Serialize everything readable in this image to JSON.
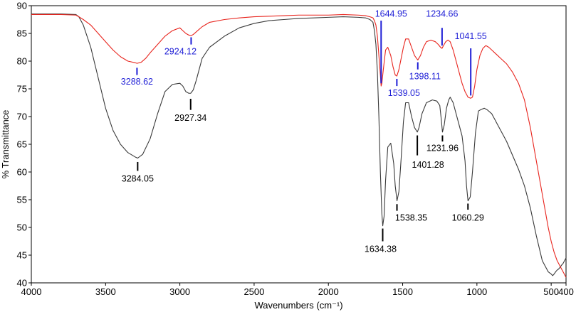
{
  "chart_data": {
    "type": "line",
    "xlabel": "Wavenumbers (cm⁻¹)",
    "ylabel": "% Transmittance",
    "xlim": [
      4000,
      400
    ],
    "ylim": [
      40,
      90
    ],
    "x_ticks": [
      "4000",
      "3500",
      "3000",
      "2500",
      "2000",
      "1500",
      "1000",
      "500",
      "400"
    ],
    "x_tick_values": [
      4000,
      3500,
      3000,
      2500,
      2000,
      1500,
      1000,
      500,
      400
    ],
    "y_ticks": [
      "40",
      "45",
      "50",
      "55",
      "60",
      "65",
      "70",
      "75",
      "80",
      "85",
      "90"
    ],
    "y_tick_values": [
      40,
      45,
      50,
      55,
      60,
      65,
      70,
      75,
      80,
      85,
      90
    ],
    "grid": false,
    "colors": {
      "black_series": "#3a3a3a",
      "red_series": "#e8251e",
      "blue_labels": "#1f1fd6"
    },
    "series": [
      {
        "color": "black",
        "x": [
          4000,
          3800,
          3700,
          3680,
          3650,
          3600,
          3550,
          3500,
          3450,
          3400,
          3350,
          3300,
          3284,
          3250,
          3200,
          3150,
          3100,
          3050,
          3000,
          2980,
          2960,
          2940,
          2927,
          2910,
          2890,
          2870,
          2850,
          2800,
          2700,
          2600,
          2500,
          2400,
          2300,
          2200,
          2100,
          2000,
          1900,
          1800,
          1750,
          1720,
          1700,
          1690,
          1680,
          1670,
          1660,
          1650,
          1640,
          1634,
          1625,
          1615,
          1600,
          1580,
          1560,
          1550,
          1538,
          1525,
          1510,
          1495,
          1480,
          1460,
          1440,
          1420,
          1401,
          1390,
          1370,
          1340,
          1300,
          1270,
          1250,
          1240,
          1232,
          1220,
          1205,
          1190,
          1180,
          1160,
          1140,
          1120,
          1100,
          1080,
          1070,
          1060,
          1045,
          1030,
          1010,
          990,
          970,
          950,
          930,
          900,
          880,
          860,
          840,
          820,
          800,
          760,
          720,
          680,
          640,
          600,
          560,
          520,
          500,
          490,
          480,
          470,
          460,
          450,
          440,
          430,
          420,
          410,
          400
        ],
        "y": [
          88.5,
          88.5,
          88.4,
          88.0,
          86.5,
          82.5,
          77.0,
          71.5,
          67.5,
          65.0,
          63.5,
          62.7,
          62.5,
          63.2,
          66.0,
          70.5,
          74.5,
          75.8,
          76.0,
          75.5,
          74.5,
          74.2,
          74.2,
          74.8,
          76.5,
          78.5,
          80.5,
          82.5,
          84.5,
          86.0,
          86.8,
          87.3,
          87.5,
          87.7,
          87.8,
          87.9,
          88.0,
          87.9,
          87.8,
          87.5,
          87.0,
          85.5,
          83.0,
          78.0,
          70.0,
          60.0,
          52.5,
          50.3,
          52.0,
          58.5,
          64.5,
          65.2,
          61.5,
          57.5,
          54.8,
          56.5,
          62.5,
          69.0,
          72.5,
          72.5,
          70.0,
          68.0,
          67.2,
          68.0,
          70.5,
          72.5,
          73.0,
          72.8,
          72.0,
          69.5,
          67.2,
          68.5,
          71.5,
          73.0,
          73.5,
          72.5,
          70.5,
          68.5,
          66.5,
          62.0,
          57.5,
          54.8,
          55.5,
          60.0,
          67.0,
          71.0,
          71.3,
          71.5,
          71.2,
          70.5,
          69.5,
          68.5,
          67.5,
          66.5,
          65.5,
          63.0,
          60.5,
          57.5,
          53.5,
          48.5,
          44.0,
          42.0,
          41.6,
          41.3,
          41.6,
          42.0,
          42.3,
          42.5,
          42.8,
          43.2,
          43.5,
          44.0,
          44.5
        ]
      },
      {
        "color": "red",
        "x": [
          4000,
          3800,
          3700,
          3680,
          3650,
          3600,
          3550,
          3500,
          3450,
          3400,
          3350,
          3300,
          3288,
          3260,
          3230,
          3200,
          3150,
          3100,
          3050,
          3000,
          2980,
          2960,
          2940,
          2924,
          2910,
          2880,
          2850,
          2800,
          2700,
          2600,
          2500,
          2400,
          2300,
          2200,
          2100,
          2000,
          1900,
          1800,
          1750,
          1720,
          1700,
          1690,
          1680,
          1670,
          1660,
          1650,
          1645,
          1640,
          1630,
          1615,
          1600,
          1580,
          1565,
          1550,
          1539,
          1525,
          1510,
          1495,
          1480,
          1460,
          1440,
          1420,
          1398,
          1380,
          1360,
          1340,
          1310,
          1280,
          1260,
          1245,
          1235,
          1225,
          1210,
          1195,
          1180,
          1160,
          1140,
          1120,
          1100,
          1080,
          1060,
          1042,
          1030,
          1015,
          1000,
          980,
          960,
          940,
          920,
          900,
          880,
          860,
          840,
          800,
          760,
          720,
          680,
          640,
          600,
          560,
          520,
          500,
          480,
          460,
          440,
          420,
          400
        ],
        "y": [
          88.4,
          88.4,
          88.3,
          88.0,
          87.5,
          86.5,
          85.0,
          83.5,
          82.0,
          80.8,
          80.0,
          79.7,
          79.6,
          79.8,
          80.5,
          81.5,
          83.0,
          84.5,
          85.5,
          86.0,
          85.5,
          85.0,
          84.7,
          84.6,
          84.8,
          85.5,
          86.2,
          87.0,
          87.5,
          87.8,
          88.0,
          88.1,
          88.2,
          88.3,
          88.3,
          88.3,
          88.4,
          88.3,
          88.2,
          88.0,
          87.8,
          87.3,
          86.5,
          84.5,
          81.0,
          77.5,
          75.5,
          76.0,
          78.5,
          82.0,
          82.5,
          81.0,
          79.0,
          77.5,
          77.3,
          78.5,
          80.5,
          82.5,
          84.0,
          84.0,
          82.5,
          81.0,
          80.2,
          81.0,
          82.5,
          83.5,
          83.8,
          83.5,
          83.0,
          82.5,
          82.3,
          82.8,
          83.5,
          83.8,
          83.5,
          82.0,
          80.0,
          78.0,
          76.0,
          74.5,
          73.5,
          73.3,
          73.5,
          75.5,
          78.5,
          81.0,
          82.3,
          82.8,
          82.5,
          82.0,
          81.5,
          81.0,
          80.5,
          79.5,
          78.0,
          76.0,
          73.0,
          68.0,
          62.0,
          56.0,
          50.0,
          47.5,
          45.5,
          44.0,
          43.0,
          42.0,
          41.0
        ]
      }
    ],
    "annotations": [
      {
        "text": "3288.62",
        "series": "red",
        "x": 3288.62,
        "y": 79.6,
        "tick_top": 78.8,
        "tick_bottom": 77.5,
        "label_y": 75.8,
        "label_x_offset": 0,
        "anchor": "middle"
      },
      {
        "text": "2924.12",
        "series": "red",
        "x": 2924.12,
        "y": 84.6,
        "tick_top": 84.3,
        "tick_bottom": 83.0,
        "label_y": 81.2,
        "label_x_offset": -15,
        "anchor": "middle"
      },
      {
        "text": "1644.95",
        "series": "red",
        "x": 1644.95,
        "y": 75.5,
        "tick_top": 76.0,
        "tick_bottom": 87.3,
        "label_y": 88.0,
        "label_x_offset": 14,
        "anchor": "middle"
      },
      {
        "text": "1539.05",
        "series": "red",
        "x": 1539.05,
        "y": 77.3,
        "tick_top": 76.8,
        "tick_bottom": 75.5,
        "label_y": 73.7,
        "label_x_offset": 10,
        "anchor": "middle"
      },
      {
        "text": "1398.11",
        "series": "red",
        "x": 1398.11,
        "y": 80.2,
        "tick_top": 79.8,
        "tick_bottom": 78.5,
        "label_y": 76.7,
        "label_x_offset": 10,
        "anchor": "middle"
      },
      {
        "text": "1234.66",
        "series": "red",
        "x": 1234.66,
        "y": 82.3,
        "tick_top": 82.8,
        "tick_bottom": 86.0,
        "label_y": 88.0,
        "label_x_offset": 0,
        "anchor": "middle"
      },
      {
        "text": "1041.55",
        "series": "red",
        "x": 1041.55,
        "y": 73.3,
        "tick_top": 73.8,
        "tick_bottom": 82.3,
        "label_y": 84.0,
        "label_x_offset": 0,
        "anchor": "middle"
      },
      {
        "text": "2927.34",
        "series": "black",
        "x": 2927.34,
        "y": 74.2,
        "tick_top": 73.2,
        "tick_bottom": 71.2,
        "label_y": 69.2,
        "label_x_offset": 0,
        "anchor": "middle"
      },
      {
        "text": "3284.05",
        "series": "black",
        "x": 3284.05,
        "y": 62.5,
        "tick_top": 61.8,
        "tick_bottom": 60.2,
        "label_y": 58.3,
        "label_x_offset": 0,
        "anchor": "middle"
      },
      {
        "text": "1634.38",
        "series": "black",
        "x": 1634.38,
        "y": 50.3,
        "tick_top": 49.8,
        "tick_bottom": 47.5,
        "label_y": 45.6,
        "label_x_offset": -3,
        "anchor": "middle"
      },
      {
        "text": "1538.35",
        "series": "black",
        "x": 1538.35,
        "y": 54.8,
        "tick_top": 54.2,
        "tick_bottom": 53.0,
        "label_y": 51.2,
        "label_x_offset": 20,
        "anchor": "middle"
      },
      {
        "text": "1401.28",
        "series": "black",
        "x": 1401.28,
        "y": 67.2,
        "tick_top": 66.6,
        "tick_bottom": 63.0,
        "label_y": 60.8,
        "label_x_offset": 15,
        "anchor": "middle"
      },
      {
        "text": "1231.96",
        "series": "black",
        "x": 1231.96,
        "y": 67.2,
        "tick_top": 66.6,
        "tick_bottom": 65.5,
        "label_y": 63.8,
        "label_x_offset": 0,
        "anchor": "middle"
      },
      {
        "text": "1060.29",
        "series": "black",
        "x": 1060.29,
        "y": 54.8,
        "tick_top": 54.3,
        "tick_bottom": 53.2,
        "label_y": 51.2,
        "label_x_offset": 0,
        "anchor": "middle"
      }
    ]
  }
}
